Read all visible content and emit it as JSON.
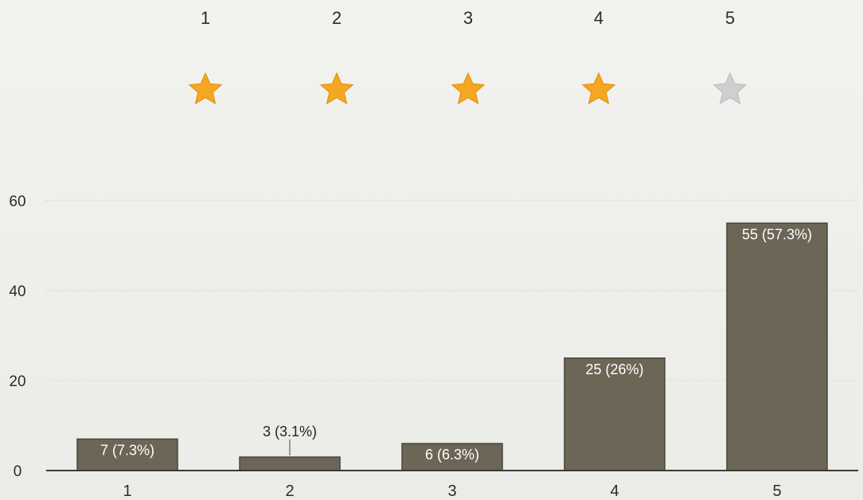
{
  "rating_scale": {
    "options": [
      {
        "label": "1",
        "filled": true
      },
      {
        "label": "2",
        "filled": true
      },
      {
        "label": "3",
        "filled": true
      },
      {
        "label": "4",
        "filled": true
      },
      {
        "label": "5",
        "filled": false
      }
    ],
    "colors": {
      "filled": "#f5a623",
      "empty": "#cfcfcf"
    }
  },
  "chart_data": {
    "type": "bar",
    "categories": [
      "1",
      "2",
      "3",
      "4",
      "5"
    ],
    "values": [
      7,
      3,
      6,
      25,
      55
    ],
    "data_labels": [
      "7 (7.3%)",
      "3 (3.1%)",
      "6 (6.3%)",
      "25 (26%)",
      "55 (57.3%)"
    ],
    "y_ticks": [
      "0",
      "20",
      "40",
      "60"
    ],
    "ylim": [
      0,
      60
    ],
    "grid": true,
    "title": "",
    "xlabel": "",
    "ylabel": "",
    "colors": {
      "bar": "#6b6656",
      "bar_edge": "#4a4639",
      "label_inside": "#ffffff",
      "label_outside": "#222222",
      "axis": "#3a3a3a"
    }
  }
}
